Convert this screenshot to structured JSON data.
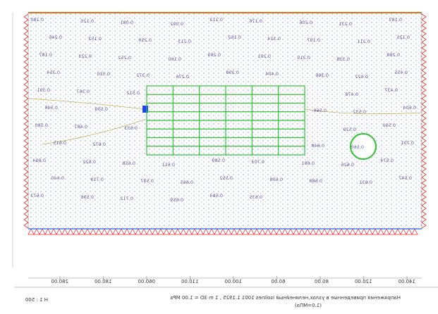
{
  "drawing": {
    "stress_labels": [
      "0.180",
      "0.120",
      "0.081",
      "0.092",
      "0.113",
      "0.176",
      "0.206",
      "0.231",
      "0.183",
      "0.246",
      "0.153",
      "0.250",
      "0.213",
      "0.162",
      "0.314",
      "0.197",
      "0.211",
      "0.125",
      "0.187",
      "0.223",
      "0.252",
      "0.160",
      "0.269",
      "0.291",
      "0.315",
      "0.338",
      "0.288",
      "0.354",
      "0.310",
      "0.372",
      "0.276",
      "0.398",
      "0.404",
      "0.366",
      "0.422",
      "0.455",
      "0.391",
      "0.367",
      "0.512",
      "0.478",
      "0.437",
      "0.546",
      "0.509",
      "0.566",
      "0.532",
      "0.604",
      "0.580",
      "0.487",
      "0.633",
      "0.529",
      "0.590",
      "0.615",
      "0.672",
      "0.648",
      "0.560",
      "0.701",
      "0.694",
      "0.522",
      "0.658",
      "0.611",
      "0.589",
      "0.703",
      "0.681",
      "0.626",
      "0.574",
      "0.640",
      "0.719",
      "0.597",
      "0.665",
      "0.552",
      "0.608",
      "0.688",
      "0.631",
      "0.547",
      "0.673",
      "0.596",
      "0.712",
      "0.659",
      "0.584",
      "0.635"
    ],
    "scale_labels": [
      "280.00",
      "180.00",
      "060.00",
      "110.00",
      "100.00",
      "60.00",
      "80.00",
      "120.00",
      "140.00"
    ],
    "scale_marker": "H 1 : 500",
    "footer_line1": "Напряжения приведенные в узлах,нелинейный Isolines 1001 1.1925 , 1 m 3D = 1.00 MPa",
    "footer_line2": "(1.0=МПа)"
  }
}
